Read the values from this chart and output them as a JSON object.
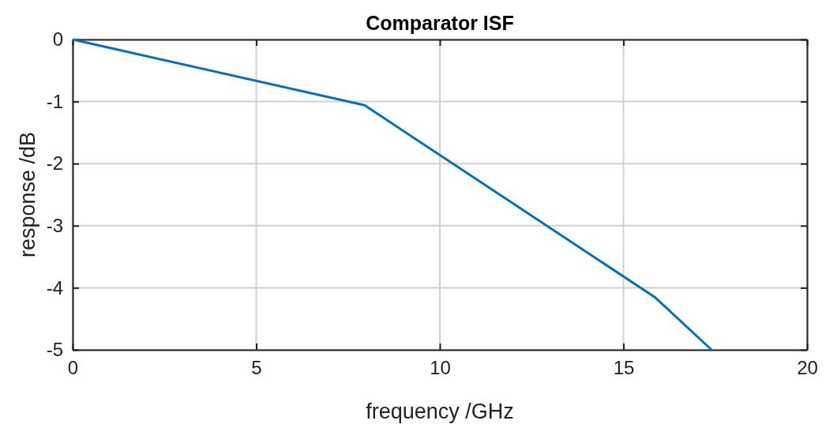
{
  "chart_data": {
    "type": "line",
    "title": "Comparator ISF",
    "xlabel": "frequency /GHz",
    "ylabel": "response /dB",
    "x": [
      0,
      7.95,
      15.85,
      17.4
    ],
    "series": [
      {
        "color": "#0072bd",
        "values": [
          0,
          -1.06,
          -4.15,
          -5
        ]
      }
    ],
    "xlim": [
      0,
      20
    ],
    "xticks": [
      0,
      5,
      10,
      15,
      20
    ],
    "ylim": [
      -5,
      0
    ],
    "yticks": [
      -5,
      -4,
      -3,
      -2,
      -1,
      0
    ],
    "grid": true,
    "line_style": "solid",
    "marker": "none"
  }
}
